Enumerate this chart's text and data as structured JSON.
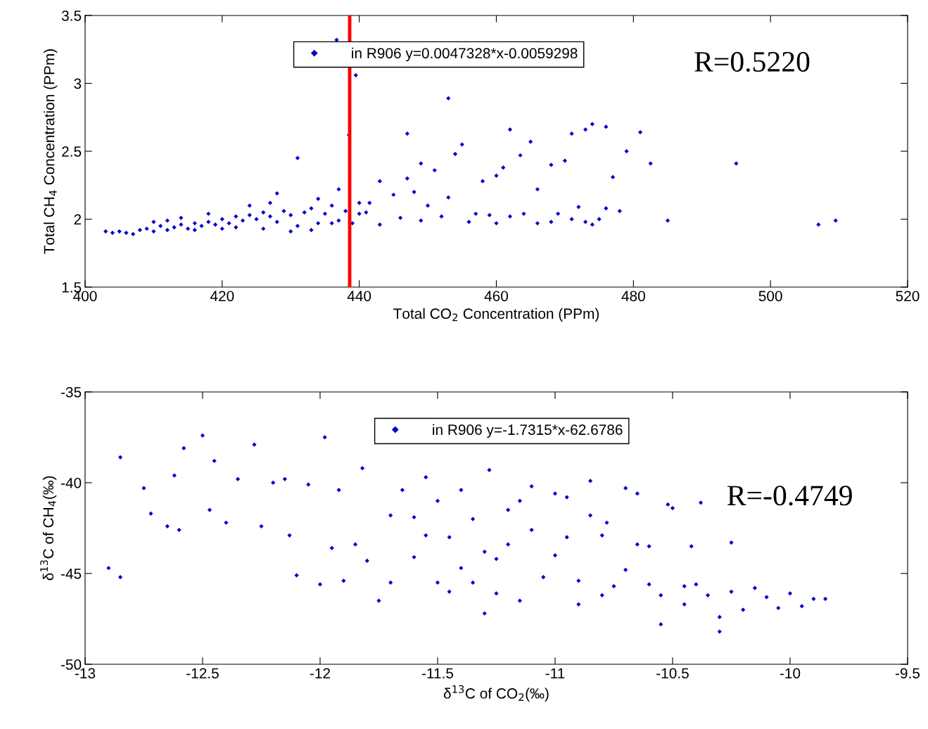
{
  "chart_data": [
    {
      "type": "scatter",
      "xlabel": "Total CO$_{2}$ Concentration (PPm)",
      "ylabel": "Total CH$_{4}$ Concentration (PPm)",
      "xlim": [
        400,
        520
      ],
      "ylim": [
        1.5,
        3.5
      ],
      "xticks": [
        400,
        420,
        440,
        460,
        480,
        500,
        520
      ],
      "yticks": [
        1.5,
        2,
        2.5,
        3,
        3.5
      ],
      "grid": false,
      "legend": "top",
      "marker": "diamond",
      "annotations": [
        "R=0.5220"
      ],
      "ref_lines": [
        {
          "axis": "x",
          "value": 438.6,
          "color": "#ff0000"
        }
      ],
      "series": [
        {
          "name": "in R906 y=0.0047328*x-0.0059298",
          "color": "#0000cc",
          "x": [
            436.7,
            439.5,
            453,
            431,
            447,
            438.5,
            462,
            474,
            495,
            485,
            507,
            509.5,
            481,
            479,
            482.5,
            476,
            473,
            471,
            470,
            477,
            468,
            465,
            463.5,
            458,
            455,
            454,
            451,
            449,
            447,
            443,
            460,
            461,
            466,
            472,
            476,
            474,
            471,
            468,
            464,
            462,
            459,
            456,
            452,
            449,
            446,
            443,
            441,
            440,
            441.5,
            445,
            448,
            450,
            453,
            457,
            460,
            466,
            469,
            473,
            475,
            478,
            403,
            404,
            405,
            406,
            407,
            408,
            409,
            410,
            411,
            412,
            413,
            414,
            415,
            416,
            417,
            418,
            419,
            420,
            421,
            422,
            423,
            424,
            425,
            426,
            427,
            428,
            429,
            430,
            431,
            432,
            433,
            434,
            435,
            436,
            437,
            438,
            439,
            440,
            410,
            414,
            418,
            422,
            426,
            430,
            434,
            424,
            428,
            433,
            436,
            412,
            416,
            420,
            427,
            437
          ],
          "values": [
            3.32,
            3.06,
            2.89,
            2.45,
            2.63,
            2.62,
            2.66,
            2.7,
            2.41,
            1.99,
            1.96,
            1.99,
            2.64,
            2.5,
            2.41,
            2.68,
            2.66,
            2.63,
            2.43,
            2.31,
            2.4,
            2.57,
            2.47,
            2.28,
            2.55,
            2.48,
            2.36,
            2.41,
            2.3,
            2.28,
            2.32,
            2.38,
            2.22,
            2.09,
            2.08,
            1.96,
            2.0,
            1.98,
            2.04,
            2.02,
            2.03,
            1.98,
            2.02,
            1.99,
            2.01,
            1.96,
            2.05,
            2.12,
            2.12,
            2.18,
            2.2,
            2.1,
            2.16,
            2.04,
            1.97,
            1.97,
            2.04,
            1.98,
            2.0,
            2.06,
            1.91,
            1.9,
            1.91,
            1.9,
            1.89,
            1.92,
            1.93,
            1.91,
            1.95,
            1.92,
            1.94,
            1.96,
            1.93,
            1.97,
            1.95,
            1.98,
            1.96,
            2.0,
            1.97,
            2.02,
            1.99,
            2.03,
            2.0,
            2.05,
            2.02,
            1.98,
            2.06,
            2.03,
            1.95,
            2.05,
            2.08,
            1.97,
            2.04,
            2.1,
            1.99,
            2.06,
            1.97,
            2.04,
            1.98,
            2.01,
            2.04,
            1.94,
            1.93,
            1.91,
            2.15,
            2.1,
            2.19,
            1.92,
            1.97,
            1.99,
            1.92,
            1.93,
            2.12,
            2.22
          ]
        }
      ]
    },
    {
      "type": "scatter",
      "xlabel": "δ$^{13}$C of CO$_{2}$(‰)",
      "ylabel": "δ$^{13}$C of CH$_{4}$(‰)",
      "xlim": [
        -13,
        -9.5
      ],
      "ylim": [
        -50,
        -35
      ],
      "xticks": [
        -13,
        -12.5,
        -12,
        -11.5,
        -11,
        -10.5,
        -10,
        -9.5
      ],
      "yticks": [
        -50,
        -45,
        -40,
        -35
      ],
      "grid": false,
      "legend": "top right",
      "marker": "diamond",
      "annotations": [
        "R=-0.4749"
      ],
      "series": [
        {
          "name": "in R906 y=-1.7315*x-62.6786",
          "color": "#0000cc",
          "x": [
            -12.9,
            -12.85,
            -12.85,
            -12.75,
            -12.72,
            -12.65,
            -12.6,
            -12.62,
            -12.58,
            -12.5,
            -12.47,
            -12.45,
            -12.4,
            -12.35,
            -12.28,
            -12.25,
            -12.2,
            -12.15,
            -12.13,
            -12.1,
            -12.05,
            -12.0,
            -11.98,
            -11.95,
            -11.9,
            -11.92,
            -11.85,
            -11.82,
            -11.75,
            -11.7,
            -11.65,
            -11.6,
            -11.55,
            -11.5,
            -11.45,
            -11.4,
            -11.35,
            -11.3,
            -11.28,
            -11.25,
            -11.2,
            -11.15,
            -11.1,
            -11.05,
            -11.0,
            -10.95,
            -10.9,
            -10.85,
            -10.8,
            -10.75,
            -10.7,
            -10.65,
            -10.6,
            -10.55,
            -10.52,
            -10.5,
            -10.45,
            -10.42,
            -10.38,
            -10.35,
            -10.3,
            -10.3,
            -10.25,
            -10.2,
            -10.15,
            -10.1,
            -10.05,
            -10.0,
            -9.95,
            -9.9,
            -9.85,
            -10.55,
            -10.7,
            -10.78,
            -11.0,
            -11.35,
            -11.5,
            -11.6,
            -11.7,
            -11.8,
            -11.4,
            -11.2,
            -11.25,
            -11.1,
            -10.9,
            -10.6,
            -10.85,
            -10.25,
            -10.65,
            -11.45,
            -11.15,
            -11.55,
            -11.3,
            -10.95,
            -10.8,
            -10.4,
            -10.45
          ],
          "values": [
            -44.7,
            -45.2,
            -38.6,
            -40.3,
            -41.7,
            -42.4,
            -42.6,
            -39.6,
            -38.1,
            -37.4,
            -41.5,
            -38.8,
            -42.2,
            -39.8,
            -37.9,
            -42.4,
            -40.0,
            -39.8,
            -42.9,
            -45.1,
            -40.1,
            -45.6,
            -37.5,
            -43.6,
            -45.4,
            -40.4,
            -43.4,
            -39.2,
            -46.5,
            -41.8,
            -40.4,
            -44.1,
            -42.9,
            -45.5,
            -43.0,
            -40.4,
            -42.0,
            -47.2,
            -39.3,
            -44.2,
            -41.5,
            -46.5,
            -42.6,
            -45.2,
            -40.6,
            -43.0,
            -45.4,
            -39.9,
            -42.9,
            -45.7,
            -40.3,
            -43.4,
            -45.6,
            -46.2,
            -41.2,
            -41.4,
            -45.7,
            -43.5,
            -41.1,
            -46.2,
            -47.4,
            -48.2,
            -46.0,
            -47.0,
            -45.8,
            -46.3,
            -46.9,
            -46.1,
            -46.8,
            -46.4,
            -46.4,
            -47.8,
            -44.8,
            -42.2,
            -44.0,
            -45.5,
            -41.0,
            -41.9,
            -45.5,
            -44.3,
            -44.7,
            -43.4,
            -46.1,
            -40.2,
            -46.7,
            -43.5,
            -41.8,
            -43.3,
            -40.6,
            -46.0,
            -41.0,
            -39.7,
            -43.8,
            -40.8,
            -46.2,
            -45.6,
            -46.7
          ]
        }
      ]
    }
  ]
}
